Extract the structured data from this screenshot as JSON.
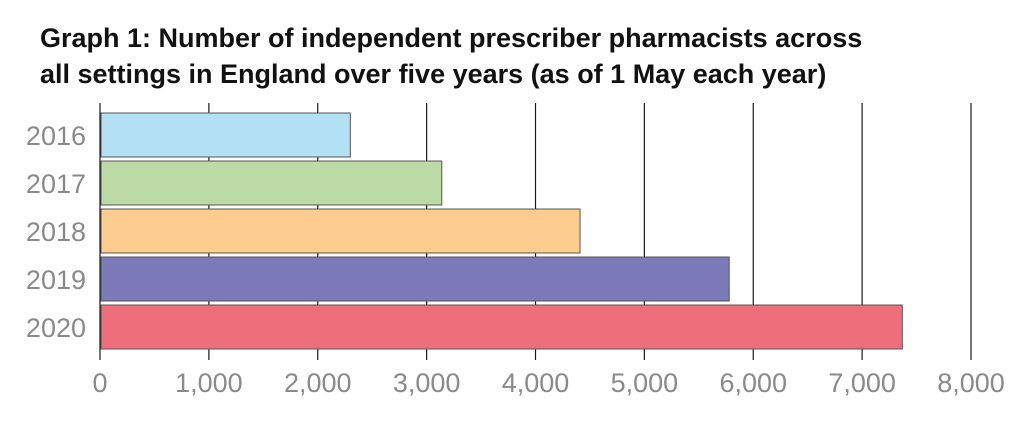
{
  "chart_data": {
    "type": "bar",
    "orientation": "horizontal",
    "title_lines": [
      "Graph 1: Number of independent prescriber pharmacists across",
      "all settings in England over five years (as of 1 May each year)"
    ],
    "categories": [
      "2016",
      "2017",
      "2018",
      "2019",
      "2020"
    ],
    "values": [
      2290,
      3130,
      4400,
      5770,
      7360
    ],
    "bar_colors": [
      "#b3e0f2",
      "#bcdaa6",
      "#fdcc8f",
      "#7c7ab8",
      "#ee6e7b"
    ],
    "xlim": [
      0,
      8000
    ],
    "xticks": [
      0,
      1000,
      2000,
      3000,
      4000,
      5000,
      6000,
      7000,
      8000
    ],
    "xtick_labels": [
      "0",
      "1,000",
      "2,000",
      "3,000",
      "4,000",
      "5,000",
      "6,000",
      "7,000",
      "8,000"
    ],
    "xlabel": "",
    "ylabel": "",
    "grid": "vertical",
    "legend": "none"
  }
}
